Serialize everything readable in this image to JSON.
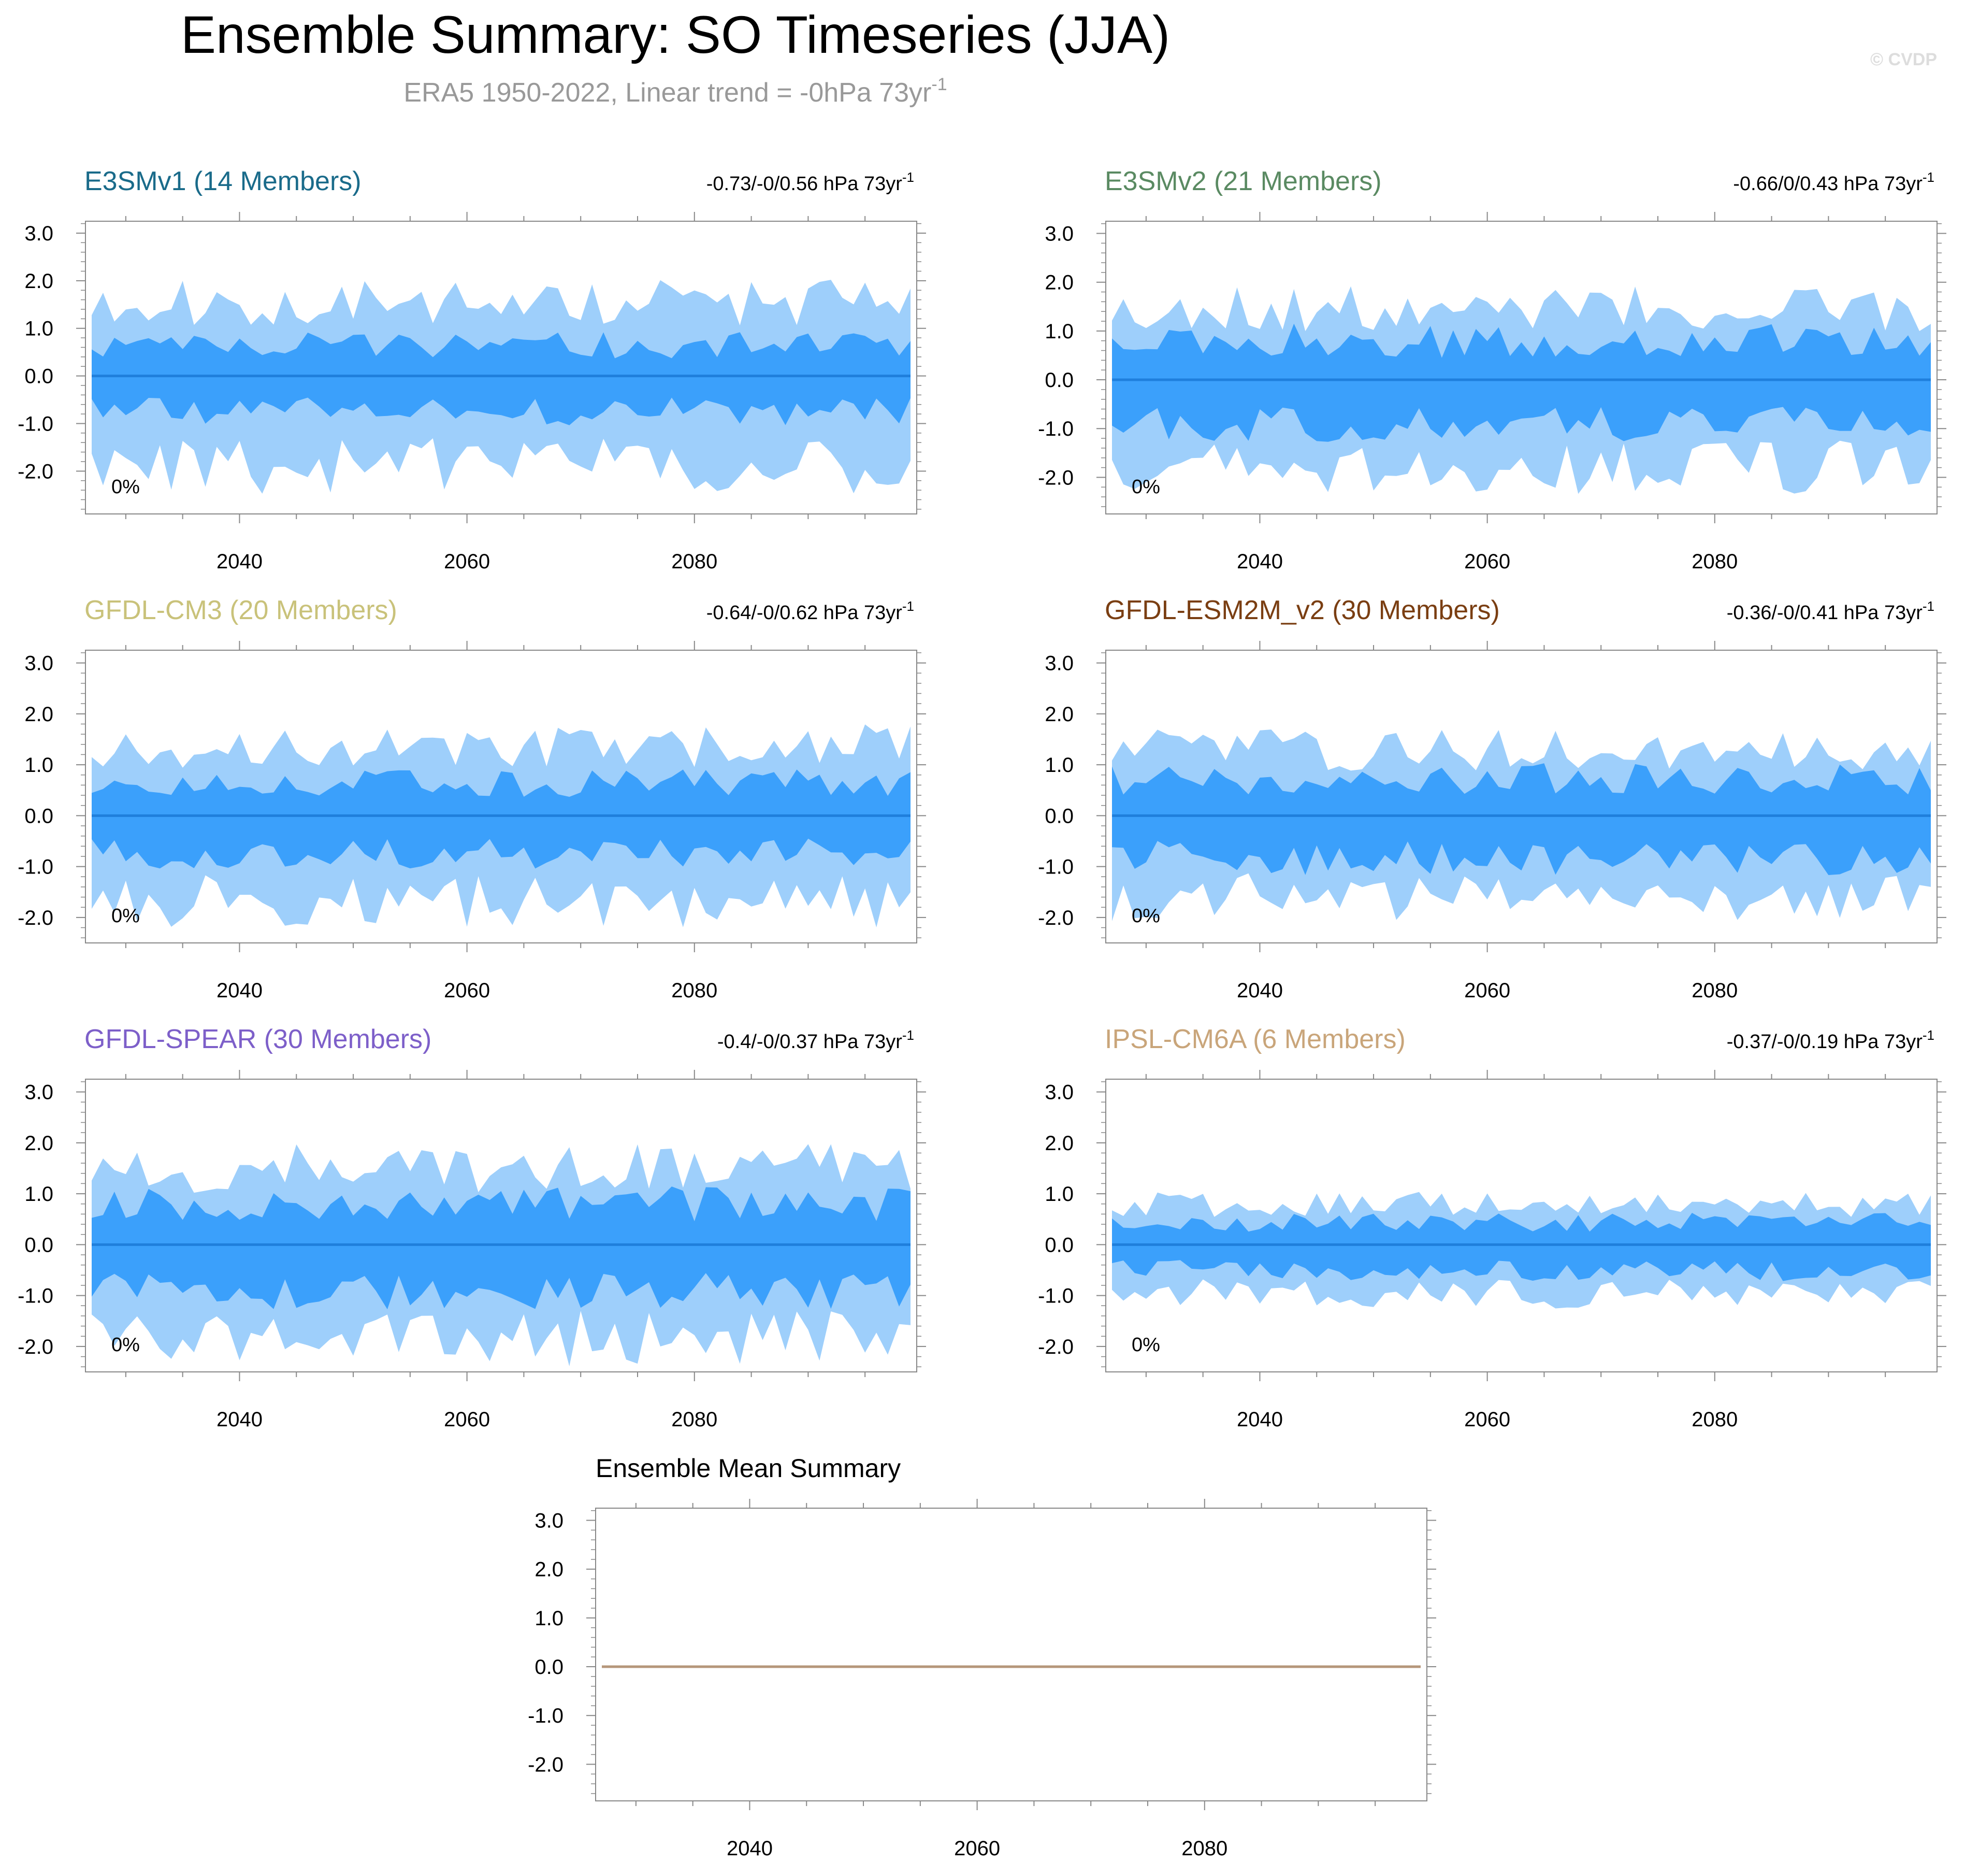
{
  "header": {
    "title": "Ensemble Summary: SO Timeseries (JJA)",
    "subtitle": "ERA5 1950-2022, Linear trend = -0hPa 73yr",
    "subtitle_sup": "-1",
    "watermark": "© CVDP"
  },
  "colors": {
    "outer_band": "#9ecffb",
    "inner_band": "#3ba0fb",
    "mean_line": "#1f7fdc",
    "summary_line": "#b5967a",
    "axis": "#888888"
  },
  "chart_data": [
    {
      "type": "area",
      "id": "e3smv1",
      "title": "E3SMv1 (14 Members)",
      "title_color": "#1a6b8a",
      "trend_label": "-0.73/-0/0.56 hPa 73yr",
      "trend_sup": "-1",
      "pct_label": "0%",
      "x_start": 2027,
      "x_end": 2099,
      "xticks": [
        2040,
        2060,
        2080
      ],
      "ylim": [
        -2.9,
        3.25
      ],
      "yticks": [
        "3.0",
        "2.0",
        "1.0",
        "0.0",
        "-1.0",
        "-2.0"
      ],
      "ytick_values": [
        3,
        2,
        1,
        0,
        -1,
        -2
      ],
      "mean": 0,
      "outer_amp": 1.8,
      "inner_amp": 0.8,
      "inner_ratio": 0.55,
      "seed": 11
    },
    {
      "type": "area",
      "id": "e3smv2",
      "title": "E3SMv2 (21 Members)",
      "title_color": "#5a8a62",
      "trend_label": "-0.66/0/0.43 hPa 73yr",
      "trend_sup": "-1",
      "pct_label": "0%",
      "x_start": 2027,
      "x_end": 2099,
      "xticks": [
        2040,
        2060,
        2080
      ],
      "ylim": [
        -2.75,
        3.25
      ],
      "yticks": [
        "3.0",
        "2.0",
        "1.0",
        "0.0",
        "-1.0",
        "-2.0"
      ],
      "ytick_values": [
        3,
        2,
        1,
        0,
        -1,
        -2
      ],
      "mean": 0,
      "outer_amp": 1.7,
      "inner_amp": 1.0,
      "inner_ratio": 0.6,
      "seed": 23
    },
    {
      "type": "area",
      "id": "gfdl-cm3",
      "title": "GFDL-CM3 (20 Members)",
      "title_color": "#c9c27a",
      "trend_label": "-0.64/-0/0.62 hPa 73yr",
      "trend_sup": "-1",
      "pct_label": "0%",
      "x_start": 2027,
      "x_end": 2099,
      "xticks": [
        2040,
        2060,
        2080
      ],
      "ylim": [
        -2.5,
        3.25
      ],
      "yticks": [
        "3.0",
        "2.0",
        "1.0",
        "0.0",
        "-1.0",
        "-2.0"
      ],
      "ytick_values": [
        3,
        2,
        1,
        0,
        -1,
        -2
      ],
      "mean": 0,
      "outer_amp": 1.6,
      "inner_amp": 0.8,
      "inner_ratio": 0.5,
      "seed": 37
    },
    {
      "type": "area",
      "id": "gfdl-esm2m",
      "title": "GFDL-ESM2M_v2 (30 Members)",
      "title_color": "#7a3e12",
      "trend_label": "-0.36/-0/0.41 hPa 73yr",
      "trend_sup": "-1",
      "pct_label": "0%",
      "x_start": 2027,
      "x_end": 2099,
      "xticks": [
        2040,
        2060,
        2080
      ],
      "ylim": [
        -2.5,
        3.25
      ],
      "yticks": [
        "3.0",
        "2.0",
        "1.0",
        "0.0",
        "-1.0",
        "-2.0"
      ],
      "ytick_values": [
        3,
        2,
        1,
        0,
        -1,
        -2
      ],
      "mean": 0,
      "outer_amp": 1.5,
      "inner_amp": 0.9,
      "inner_ratio": 0.6,
      "seed": 41
    },
    {
      "type": "area",
      "id": "gfdl-spear",
      "title": "GFDL-SPEAR (30 Members)",
      "title_color": "#7d5fc9",
      "trend_label": "-0.4/-0/0.37 hPa 73yr",
      "trend_sup": "-1",
      "pct_label": "0%",
      "x_start": 2027,
      "x_end": 2099,
      "xticks": [
        2040,
        2060,
        2080
      ],
      "ylim": [
        -2.5,
        3.25
      ],
      "yticks": [
        "3.0",
        "2.0",
        "1.0",
        "0.0",
        "-1.0",
        "-2.0"
      ],
      "ytick_values": [
        3,
        2,
        1,
        0,
        -1,
        -2
      ],
      "mean": 0,
      "outer_amp": 1.75,
      "inner_amp": 1.0,
      "inner_ratio": 0.6,
      "seed": 53
    },
    {
      "type": "area",
      "id": "ipsl-cm6a",
      "title": "IPSL-CM6A (6 Members)",
      "title_color": "#c9a57a",
      "trend_label": "-0.37/-0/0.19 hPa 73yr",
      "trend_sup": "-1",
      "pct_label": "0%",
      "x_start": 2027,
      "x_end": 2099,
      "xticks": [
        2040,
        2060,
        2080
      ],
      "ylim": [
        -2.5,
        3.25
      ],
      "yticks": [
        "3.0",
        "2.0",
        "1.0",
        "0.0",
        "-1.0",
        "-2.0"
      ],
      "ytick_values": [
        3,
        2,
        1,
        0,
        -1,
        -2
      ],
      "mean": 0,
      "outer_amp": 0.9,
      "inner_amp": 0.55,
      "inner_ratio": 0.7,
      "seed": 67
    },
    {
      "type": "line",
      "id": "ensemble-mean",
      "title": "Ensemble Mean Summary",
      "x_start": 2027,
      "x_end": 2099,
      "xticks": [
        2040,
        2060,
        2080
      ],
      "ylim": [
        -2.75,
        3.25
      ],
      "yticks": [
        "3.0",
        "2.0",
        "1.0",
        "0.0",
        "-1.0",
        "-2.0"
      ],
      "ytick_values": [
        3,
        2,
        1,
        0,
        -1,
        -2
      ],
      "series": [
        {
          "name": "ensemble mean",
          "value": 0
        }
      ]
    }
  ]
}
